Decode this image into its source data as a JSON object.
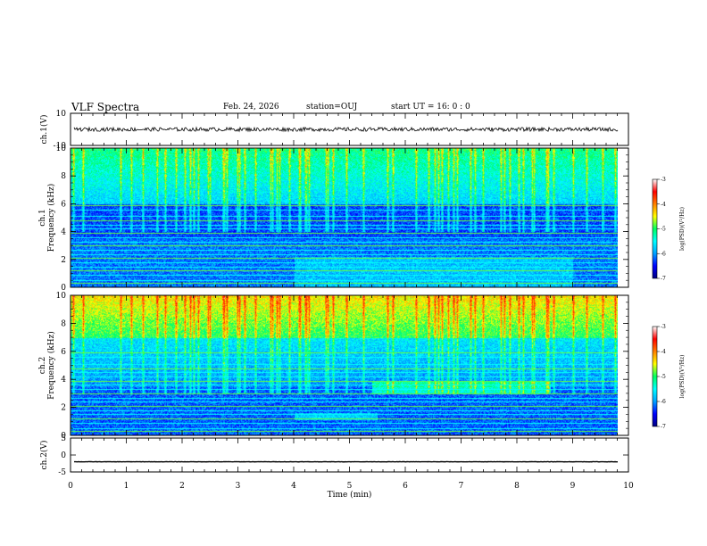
{
  "header": {
    "title": "VLF Spectra",
    "date": "Feb. 24, 2026",
    "station": "station=OUJ",
    "start_ut": "start  UT =   16: 0  : 0"
  },
  "chart_data": {
    "type": "spectrogram",
    "xlabel": "Time  (min)",
    "xlim": [
      0,
      10
    ],
    "xticks": [
      "0",
      "1",
      "2",
      "3",
      "4",
      "5",
      "6",
      "7",
      "8",
      "9",
      "10"
    ],
    "panels": [
      {
        "id": "ch1-wave",
        "kind": "waveform",
        "ylabel": "ch.1(V)",
        "ylim": [
          -10,
          10
        ],
        "yticks": [
          "10",
          "-10"
        ],
        "level": 0
      },
      {
        "id": "ch1-spec",
        "kind": "spectrogram",
        "ylabel_top": "ch.1",
        "ylabel": "Frequency  (kHz)",
        "ylim": [
          0,
          10
        ],
        "yticks": [
          "0",
          "2",
          "4",
          "6",
          "8",
          "10"
        ]
      },
      {
        "id": "ch2-spec",
        "kind": "spectrogram",
        "ylabel_top": "ch.2",
        "ylabel": "Frequency  (kHz)",
        "ylim": [
          0,
          10
        ],
        "yticks": [
          "0",
          "2",
          "4",
          "6",
          "8",
          "10"
        ]
      },
      {
        "id": "ch2-wave",
        "kind": "waveform",
        "ylabel": "ch.2(V)",
        "ylim": [
          -5,
          5
        ],
        "yticks": [
          "5",
          "0",
          "-5"
        ],
        "level": -2
      }
    ],
    "colorbar": {
      "label": "log(PSD)(V²/Hz)",
      "range": [
        -7,
        -3
      ],
      "ticks": [
        "-3",
        "-4",
        "-5",
        "-6",
        "-7"
      ],
      "colormap": [
        "#000080",
        "#0000ff",
        "#00a0ff",
        "#00ffff",
        "#00ff60",
        "#ffff00",
        "#ff8000",
        "#ff0000",
        "#ffffff"
      ]
    }
  }
}
